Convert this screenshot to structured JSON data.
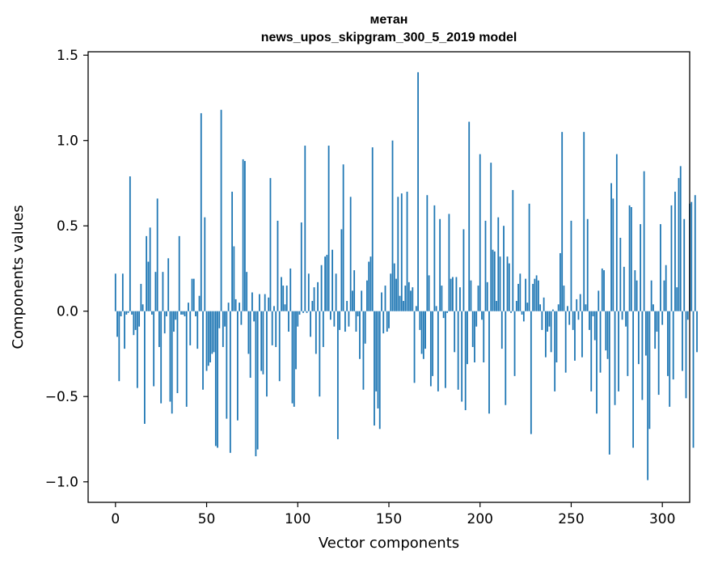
{
  "chart_data": {
    "type": "bar",
    "title_line1": "метан",
    "title_line2": "news_upos_skipgram_300_5_2019 model",
    "xlabel": "Vector components",
    "ylabel": "Components values",
    "xlim": [
      -15,
      315
    ],
    "ylim": [
      -1.12,
      1.52
    ],
    "xticks": [
      0,
      50,
      100,
      150,
      200,
      250,
      300
    ],
    "xtick_labels": [
      "0",
      "50",
      "100",
      "150",
      "200",
      "250",
      "300"
    ],
    "yticks": [
      -1.0,
      -0.5,
      0.0,
      0.5,
      1.0,
      1.5
    ],
    "ytick_labels": [
      "−1.0",
      "−0.5",
      "0.0",
      "0.5",
      "1.0",
      "1.5"
    ],
    "bar_color": "#1f77b4",
    "grid": false,
    "values": [
      0.22,
      -0.15,
      -0.41,
      -0.03,
      0.22,
      -0.22,
      -0.02,
      -0.01,
      0.79,
      -0.02,
      -0.14,
      -0.11,
      -0.45,
      -0.09,
      0.16,
      0.04,
      -0.66,
      0.44,
      0.29,
      0.49,
      -0.02,
      -0.44,
      0.23,
      0.66,
      -0.21,
      -0.54,
      0.23,
      -0.13,
      -0.03,
      0.31,
      -0.53,
      -0.6,
      -0.12,
      -0.05,
      -0.48,
      0.44,
      -0.02,
      -0.02,
      -0.03,
      -0.56,
      0.05,
      -0.2,
      0.19,
      0.19,
      -0.03,
      -0.22,
      0.09,
      1.16,
      -0.46,
      0.55,
      -0.35,
      -0.32,
      -0.3,
      -0.25,
      -0.24,
      -0.79,
      -0.8,
      -0.1,
      1.18,
      -0.21,
      -0.09,
      -0.63,
      0.05,
      -0.83,
      0.7,
      0.38,
      0.07,
      -0.64,
      0.05,
      -0.08,
      0.89,
      0.88,
      0.23,
      -0.25,
      -0.39,
      0.11,
      -0.06,
      -0.85,
      -0.81,
      0.1,
      -0.35,
      -0.37,
      0.1,
      -0.5,
      0.08,
      0.78,
      -0.2,
      0.03,
      -0.21,
      0.53,
      -0.41,
      0.2,
      0.15,
      0.04,
      0.15,
      -0.12,
      0.25,
      -0.54,
      -0.56,
      -0.34,
      -0.09,
      -0.02,
      0.52,
      -0.01,
      0.97,
      -0.01,
      0.22,
      -0.15,
      0.06,
      0.14,
      -0.25,
      0.17,
      -0.5,
      0.27,
      -0.21,
      0.32,
      0.33,
      0.97,
      -0.05,
      0.36,
      -0.09,
      0.22,
      -0.75,
      -0.11,
      0.48,
      0.86,
      -0.12,
      0.06,
      -0.09,
      0.67,
      0.12,
      0.24,
      -0.12,
      -0.03,
      -0.28,
      0.12,
      -0.46,
      -0.19,
      0.18,
      0.29,
      0.32,
      0.96,
      -0.67,
      -0.47,
      -0.57,
      -0.69,
      0.11,
      -0.13,
      0.15,
      -0.12,
      -0.1,
      0.22,
      1.0,
      0.28,
      0.19,
      0.67,
      0.09,
      0.69,
      0.06,
      0.15,
      0.7,
      0.17,
      0.12,
      0.14,
      -0.42,
      0.03,
      1.4,
      -0.11,
      -0.25,
      -0.28,
      -0.22,
      0.68,
      0.21,
      -0.44,
      -0.38,
      0.62,
      0.03,
      -0.47,
      0.54,
      0.15,
      -0.04,
      -0.45,
      -0.01,
      0.57,
      0.19,
      0.2,
      -0.24,
      0.2,
      -0.46,
      0.14,
      -0.53,
      0.48,
      -0.58,
      -0.31,
      1.11,
      0.18,
      -0.21,
      -0.3,
      -0.09,
      0.15,
      0.92,
      -0.05,
      -0.3,
      0.53,
      0.17,
      -0.6,
      0.87,
      0.36,
      0.35,
      0.06,
      0.55,
      0.32,
      -0.22,
      0.5,
      -0.55,
      0.32,
      0.28,
      -0.01,
      0.71,
      -0.38,
      0.06,
      0.16,
      0.22,
      -0.02,
      -0.06,
      0.19,
      0.05,
      0.63,
      -0.72,
      0.16,
      0.19,
      0.21,
      0.18,
      0.04,
      -0.11,
      0.08,
      -0.27,
      -0.12,
      -0.09,
      -0.24,
      0.01,
      -0.47,
      -0.3,
      0.04,
      0.34,
      1.05,
      0.15,
      -0.36,
      0.03,
      -0.08,
      0.53,
      -0.11,
      -0.29,
      0.07,
      -0.05,
      0.1,
      -0.27,
      1.05,
      0.04,
      0.54,
      -0.11,
      -0.47,
      -0.03,
      -0.17,
      -0.6,
      0.12,
      -0.36,
      0.25,
      0.24,
      -0.23,
      -0.28,
      -0.84,
      0.75,
      0.66,
      -0.55,
      0.92,
      -0.47,
      0.43,
      -0.05,
      0.26,
      -0.09,
      -0.38,
      0.62,
      0.61,
      -0.8,
      0.24,
      0.18,
      -0.31,
      0.51,
      -0.52,
      0.82,
      -0.26,
      -0.99,
      -0.69,
      0.18,
      0.04,
      -0.22,
      -0.12,
      -0.49,
      0.51,
      -0.08,
      0.18,
      0.27,
      -0.38,
      -0.56,
      0.62,
      -0.4,
      0.7,
      0.14,
      0.78,
      0.85,
      -0.35,
      0.54,
      -0.51,
      -0.05,
      0.63,
      0.64,
      -0.8,
      0.68,
      -0.24
    ]
  }
}
